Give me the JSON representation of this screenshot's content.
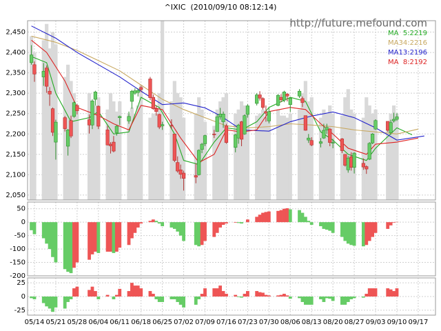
{
  "chart_data": {
    "type": "candlestick",
    "title": "^IXIC  (2010/09/10 08:12:14)",
    "annotation": "http://future.mefound.com",
    "x": [
      "05/13",
      "05/14",
      "05/17",
      "05/18",
      "05/19",
      "05/20",
      "05/21",
      "05/24",
      "05/25",
      "05/26",
      "05/27",
      "05/28",
      "06/01",
      "06/02",
      "06/03",
      "06/04",
      "06/07",
      "06/08",
      "06/09",
      "06/10",
      "06/11",
      "06/14",
      "06/15",
      "06/16",
      "06/17",
      "06/18",
      "06/21",
      "06/22",
      "06/23",
      "06/24",
      "06/25",
      "06/28",
      "06/29",
      "06/30",
      "07/01",
      "07/02",
      "07/06",
      "07/07",
      "07/08",
      "07/09",
      "07/12",
      "07/13",
      "07/14",
      "07/15",
      "07/16",
      "07/19",
      "07/20",
      "07/21",
      "07/22",
      "07/23",
      "07/26",
      "07/27",
      "07/28",
      "07/29",
      "07/30",
      "08/02",
      "08/03",
      "08/04",
      "08/05",
      "08/06",
      "08/09",
      "08/10",
      "08/11",
      "08/12",
      "08/13",
      "08/16",
      "08/17",
      "08/18",
      "08/19",
      "08/20",
      "08/23",
      "08/24",
      "08/25",
      "08/26",
      "08/27",
      "08/30",
      "08/31",
      "09/01",
      "09/02",
      "09/03",
      "09/07",
      "09/08",
      "09/09",
      "09/10"
    ],
    "open": [
      2375,
      2370,
      2340,
      2362,
      2305,
      2262,
      2180,
      2240,
      2170,
      2233,
      2243,
      2270,
      2235,
      2222,
      2285,
      2268,
      2210,
      2175,
      2180,
      2203,
      2240,
      2232,
      2280,
      2300,
      2302,
      2314,
      2335,
      2290,
      2262,
      2248,
      2220,
      2221,
      2200,
      2130,
      2112,
      2104,
      2098,
      2100,
      2162,
      2176,
      2200,
      2206,
      2242,
      2230,
      2220,
      2167,
      2190,
      2230,
      2200,
      2248,
      2275,
      2296,
      2287,
      2255,
      2232,
      2270,
      2290,
      2283,
      2298,
      2272,
      2293,
      2287,
      2245,
      2185,
      2184,
      2177,
      2190,
      2210,
      2212,
      2178,
      2188,
      2150,
      2112,
      2144,
      2118,
      2128,
      2120,
      2138,
      2178,
      2212,
      2231,
      2203,
      2232,
      2236
    ],
    "high": [
      2418,
      2378,
      2374,
      2368,
      2315,
      2265,
      2235,
      2244,
      2212,
      2245,
      2280,
      2274,
      2248,
      2285,
      2306,
      2270,
      2220,
      2180,
      2195,
      2222,
      2245,
      2255,
      2308,
      2312,
      2312,
      2318,
      2340,
      2297,
      2270,
      2250,
      2230,
      2236,
      2200,
      2145,
      2125,
      2110,
      2128,
      2162,
      2178,
      2198,
      2210,
      2248,
      2264,
      2255,
      2225,
      2200,
      2225,
      2232,
      2248,
      2273,
      2300,
      2305,
      2290,
      2270,
      2264,
      2298,
      2298,
      2306,
      2300,
      2290,
      2310,
      2292,
      2245,
      2200,
      2192,
      2190,
      2225,
      2225,
      2215,
      2188,
      2190,
      2150,
      2146,
      2155,
      2155,
      2140,
      2123,
      2180,
      2202,
      2236,
      2231,
      2235,
      2252,
      2251
    ],
    "low": [
      2370,
      2328,
      2318,
      2301,
      2269,
      2195,
      2137,
      2206,
      2147,
      2190,
      2240,
      2248,
      2201,
      2212,
      2270,
      2212,
      2172,
      2152,
      2155,
      2196,
      2222,
      2225,
      2262,
      2296,
      2292,
      2303,
      2283,
      2259,
      2245,
      2212,
      2210,
      2212,
      2131,
      2105,
      2090,
      2061,
      2079,
      2098,
      2153,
      2170,
      2190,
      2205,
      2235,
      2215,
      2176,
      2155,
      2176,
      2170,
      2198,
      2240,
      2270,
      2282,
      2260,
      2230,
      2226,
      2268,
      2278,
      2278,
      2280,
      2254,
      2288,
      2266,
      2208,
      2178,
      2170,
      2167,
      2188,
      2200,
      2170,
      2165,
      2153,
      2120,
      2105,
      2110,
      2103,
      2112,
      2102,
      2136,
      2175,
      2210,
      2205,
      2198,
      2228,
      2232
    ],
    "close": [
      2394,
      2347,
      2354,
      2317,
      2298,
      2204,
      2229,
      2213,
      2210,
      2195,
      2277,
      2257,
      2222,
      2281,
      2303,
      2219,
      2173,
      2171,
      2158,
      2219,
      2243,
      2243,
      2305,
      2306,
      2307,
      2309,
      2289,
      2262,
      2255,
      2217,
      2223,
      2220,
      2135,
      2109,
      2101,
      2091,
      2094,
      2160,
      2175,
      2196,
      2198,
      2242,
      2249,
      2249,
      2179,
      2198,
      2222,
      2187,
      2245,
      2269,
      2296,
      2288,
      2265,
      2251,
      2255,
      2295,
      2284,
      2303,
      2293,
      2288,
      2305,
      2277,
      2209,
      2190,
      2173,
      2181,
      2209,
      2216,
      2179,
      2179,
      2159,
      2123,
      2141,
      2118,
      2153,
      2119,
      2114,
      2177,
      2200,
      2233,
      2209,
      2228,
      2236,
      2242
    ],
    "volume": [
      2440,
      2400,
      2430,
      2470,
      2410,
      2450,
      2420,
      2340,
      2370,
      2330,
      2300,
      2265,
      2300,
      2280,
      2270,
      2290,
      2260,
      2300,
      2280,
      2255,
      2280,
      2250,
      2265,
      2250,
      2270,
      2320,
      2240,
      2250,
      2250,
      2300,
      2478,
      2280,
      2330,
      2300,
      2290,
      2240,
      2250,
      2290,
      2260,
      2230,
      2220,
      2260,
      2280,
      2290,
      2300,
      2250,
      2260,
      2280,
      2270,
      2255,
      2245,
      2250,
      2260,
      2240,
      2250,
      2260,
      2245,
      2245,
      2240,
      2250,
      2260,
      2300,
      2330,
      2280,
      2290,
      2240,
      2260,
      2250,
      2270,
      2250,
      2245,
      2290,
      2310,
      2260,
      2250,
      2240,
      2290,
      2270,
      2250,
      2260,
      2210,
      2250,
      2270,
      2250
    ],
    "volume_color": "#d9d9d9",
    "up_color": "#66cc66",
    "down_color": "#ee5555",
    "ylim": [
      2038,
      2478
    ],
    "yticks": [
      {
        "value": 2050,
        "label": "2,050"
      },
      {
        "value": 2100,
        "label": "2,100"
      },
      {
        "value": 2150,
        "label": "2,150"
      },
      {
        "value": 2200,
        "label": "2,200"
      },
      {
        "value": 2250,
        "label": "2,250"
      },
      {
        "value": 2300,
        "label": "2,300"
      },
      {
        "value": 2350,
        "label": "2,350"
      },
      {
        "value": 2400,
        "label": "2,400"
      },
      {
        "value": 2450,
        "label": "2,450"
      }
    ],
    "grid": true,
    "xticks": [
      "05/14",
      "05/21",
      "05/28",
      "06/04",
      "06/11",
      "06/18",
      "06/25",
      "07/02",
      "07/09",
      "07/16",
      "07/23",
      "07/30",
      "08/06",
      "08/13",
      "08/20",
      "08/27",
      "09/03",
      "09/10",
      "09/17"
    ],
    "series": [
      {
        "name": "MA  5:2219",
        "color": "#22aa22",
        "x": [
          "05/13",
          "05/18",
          "05/21",
          "05/26",
          "06/01",
          "06/04",
          "06/09",
          "06/14",
          "06/18",
          "06/24",
          "06/29",
          "07/02",
          "07/07",
          "07/12",
          "07/16",
          "07/21",
          "07/26",
          "07/30",
          "08/06",
          "08/11",
          "08/16",
          "08/20",
          "08/25",
          "08/31",
          "09/03",
          "09/10",
          "09/15"
        ],
        "values": [
          2390,
          2375,
          2300,
          2230,
          2240,
          2255,
          2200,
          2205,
          2290,
          2265,
          2200,
          2135,
          2125,
          2180,
          2215,
          2210,
          2230,
          2265,
          2290,
          2280,
          2205,
          2185,
          2150,
          2135,
          2165,
          2215,
          2198
        ]
      },
      {
        "name": "MA34:2216",
        "color": "#c8a860",
        "x": [
          "05/13",
          "05/21",
          "05/28",
          "06/04",
          "06/11",
          "06/18",
          "06/25",
          "07/02",
          "07/09",
          "07/16",
          "07/23",
          "07/30",
          "08/06",
          "08/13",
          "08/20",
          "08/27",
          "09/03",
          "09/10",
          "09/17"
        ],
        "values": [
          2440,
          2425,
          2405,
          2380,
          2355,
          2320,
          2285,
          2260,
          2240,
          2220,
          2215,
          2218,
          2225,
          2222,
          2218,
          2210,
          2205,
          2200,
          2212
        ]
      },
      {
        "name": "MA13:2196",
        "color": "#2222cc",
        "x": [
          "05/13",
          "05/21",
          "05/28",
          "06/04",
          "06/11",
          "06/18",
          "06/25",
          "07/02",
          "07/09",
          "07/14",
          "07/21",
          "07/30",
          "08/06",
          "08/13",
          "08/20",
          "08/27",
          "09/03",
          "09/10",
          "09/19"
        ],
        "values": [
          2465,
          2435,
          2400,
          2370,
          2340,
          2305,
          2272,
          2276,
          2264,
          2245,
          2210,
          2207,
          2230,
          2244,
          2254,
          2240,
          2215,
          2185,
          2195
        ]
      },
      {
        "name": "MA  8:2192",
        "color": "#dd2222",
        "x": [
          "05/13",
          "05/18",
          "05/24",
          "05/28",
          "06/04",
          "06/09",
          "06/14",
          "06/18",
          "06/25",
          "07/01",
          "07/07",
          "07/12",
          "07/16",
          "07/21",
          "07/26",
          "07/30",
          "08/06",
          "08/11",
          "08/16",
          "08/20",
          "08/25",
          "08/31",
          "09/03",
          "09/10",
          "09/17"
        ],
        "values": [
          2430,
          2400,
          2330,
          2265,
          2245,
          2225,
          2210,
          2270,
          2260,
          2190,
          2130,
          2150,
          2210,
          2205,
          2210,
          2255,
          2265,
          2260,
          2225,
          2200,
          2165,
          2150,
          2175,
          2180,
          2190
        ]
      }
    ],
    "macd": {
      "values": [
        -30,
        -45,
        -60,
        -80,
        -100,
        -130,
        -150,
        -175,
        -185,
        -190,
        -170,
        -150,
        -140,
        -120,
        -110,
        -115,
        -110,
        -110,
        -115,
        -110,
        -95,
        -85,
        -60,
        -40,
        -20,
        -5,
        5,
        10,
        5,
        -5,
        -15,
        -20,
        -25,
        -35,
        -50,
        -70,
        -85,
        -90,
        -85,
        -70,
        -55,
        -40,
        -20,
        -10,
        -5,
        -2,
        -3,
        -5,
        0,
        10,
        20,
        28,
        35,
        38,
        40,
        42,
        45,
        50,
        52,
        48,
        45,
        35,
        20,
        5,
        -10,
        -15,
        -25,
        -28,
        -32,
        -40,
        -55,
        -70,
        -80,
        -85,
        -88,
        -90,
        -85,
        -70,
        -55,
        -40,
        -25,
        -12,
        -2,
        1
      ],
      "ylim": [
        -200,
        75
      ],
      "yticks": [
        50,
        0,
        -50,
        -100,
        -150,
        -200
      ]
    },
    "signal": {
      "values": [
        -3,
        -5,
        -12,
        -18,
        -22,
        -28,
        -20,
        -22,
        -10,
        -5,
        15,
        18,
        12,
        18,
        10,
        -5,
        3,
        0,
        -5,
        3,
        14,
        10,
        25,
        20,
        20,
        15,
        10,
        5,
        -5,
        -10,
        -10,
        -5,
        -5,
        -10,
        -15,
        -20,
        -15,
        -5,
        5,
        15,
        15,
        15,
        20,
        10,
        5,
        3,
        -1,
        -2,
        5,
        10,
        10,
        8,
        7,
        3,
        2,
        2,
        3,
        5,
        2,
        -4,
        -3,
        -10,
        -15,
        -15,
        -15,
        -5,
        -10,
        -3,
        -4,
        -8,
        -15,
        -15,
        -10,
        -5,
        -3,
        -2,
        5,
        15,
        15,
        15,
        15,
        13,
        10,
        15
      ],
      "ylim": [
        -34,
        34
      ],
      "yticks": [
        25,
        0,
        -25
      ]
    }
  }
}
